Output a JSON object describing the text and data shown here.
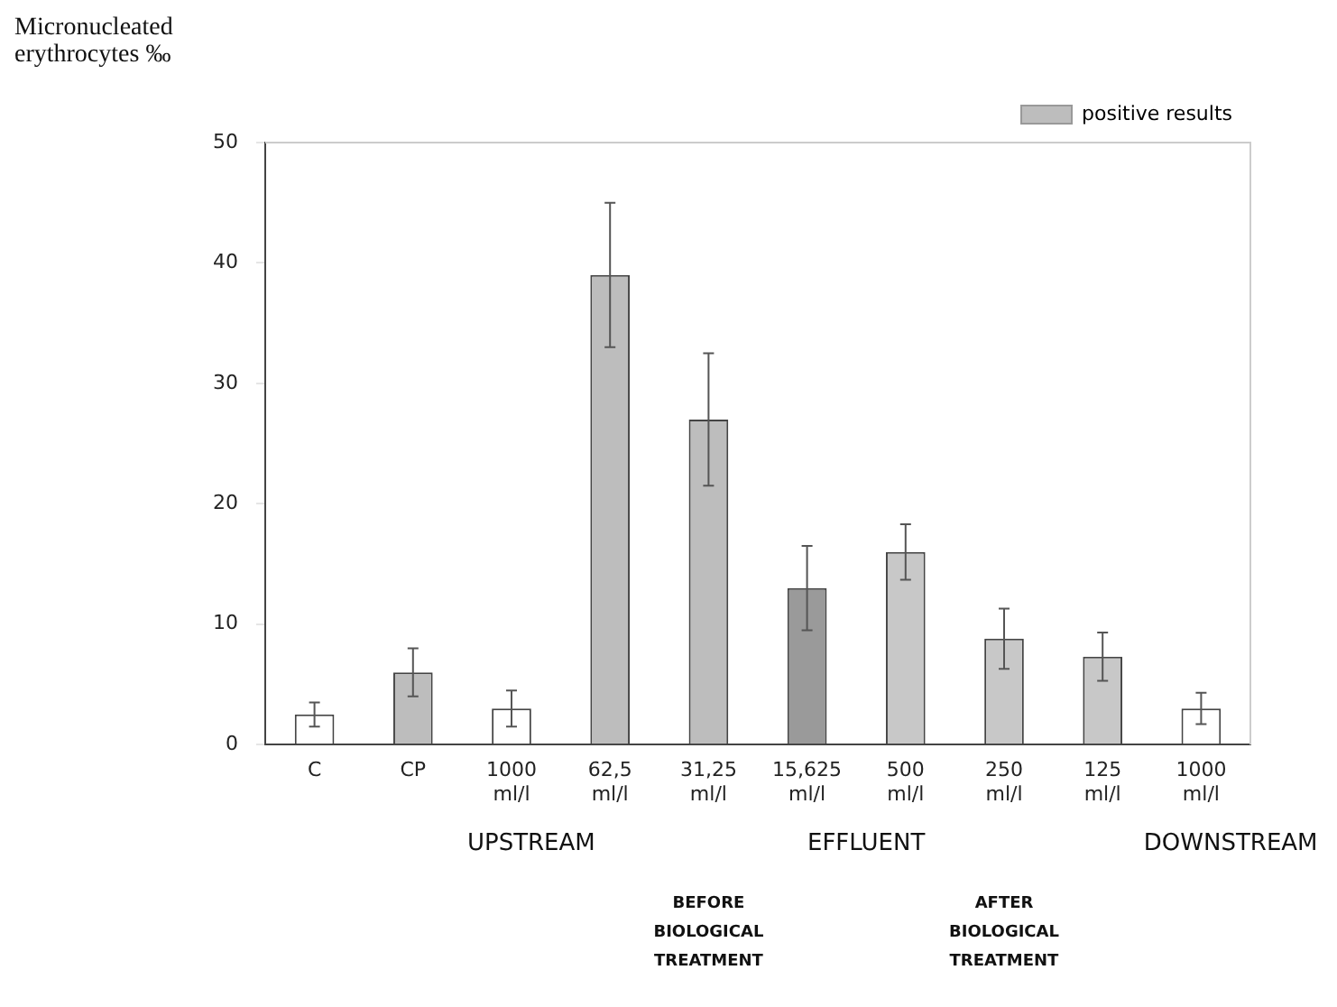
{
  "chart_data": {
    "type": "bar",
    "ylabel": "Micronucleated erythrocytes ‰",
    "categories": [
      "C",
      "CP",
      "1000\nml/l",
      "62,5\nml/l",
      "31,25\nml/l",
      "15,625\nml/l",
      "500\nml/l",
      "250\nml/l",
      "125\nml/l",
      "1000\nml/l"
    ],
    "stacked": true,
    "series": [
      {
        "color": "#ffffff",
        "values": [
          2.5,
          null,
          3.0,
          null,
          null,
          null,
          null,
          null,
          null,
          3.0
        ],
        "errors": [
          1,
          null,
          1.5,
          null,
          null,
          null,
          null,
          null,
          null,
          1.3
        ]
      },
      {
        "name": "positive results",
        "color": "#bdbdbd",
        "colors": [
          "#bdbdbd",
          "#bdbdbd",
          "#bdbdbd",
          "#bdbdbd",
          "#bdbdbd",
          "#9a9a9a",
          "#c8c8c8",
          "#c8c8c8",
          "#c8c8c8",
          "#bdbdbd"
        ],
        "values": [
          null,
          6.0,
          null,
          39,
          27,
          13,
          16,
          8.8,
          7.3,
          null
        ],
        "errors": [
          null,
          2,
          null,
          6,
          5.5,
          3.5,
          2.3,
          2.5,
          2,
          null
        ]
      }
    ],
    "ylim": [
      0,
      50
    ],
    "yticks": [
      0,
      10,
      20,
      30,
      40,
      50
    ],
    "grid": false,
    "legend": "top right",
    "annotations": [
      "UPSTREAM",
      "EFFLUENT",
      "DOWNSTREAM",
      "BEFORE BIOLOGICAL TREATMENT",
      "AFTER BIOLOGICAL TREATMENT"
    ]
  }
}
